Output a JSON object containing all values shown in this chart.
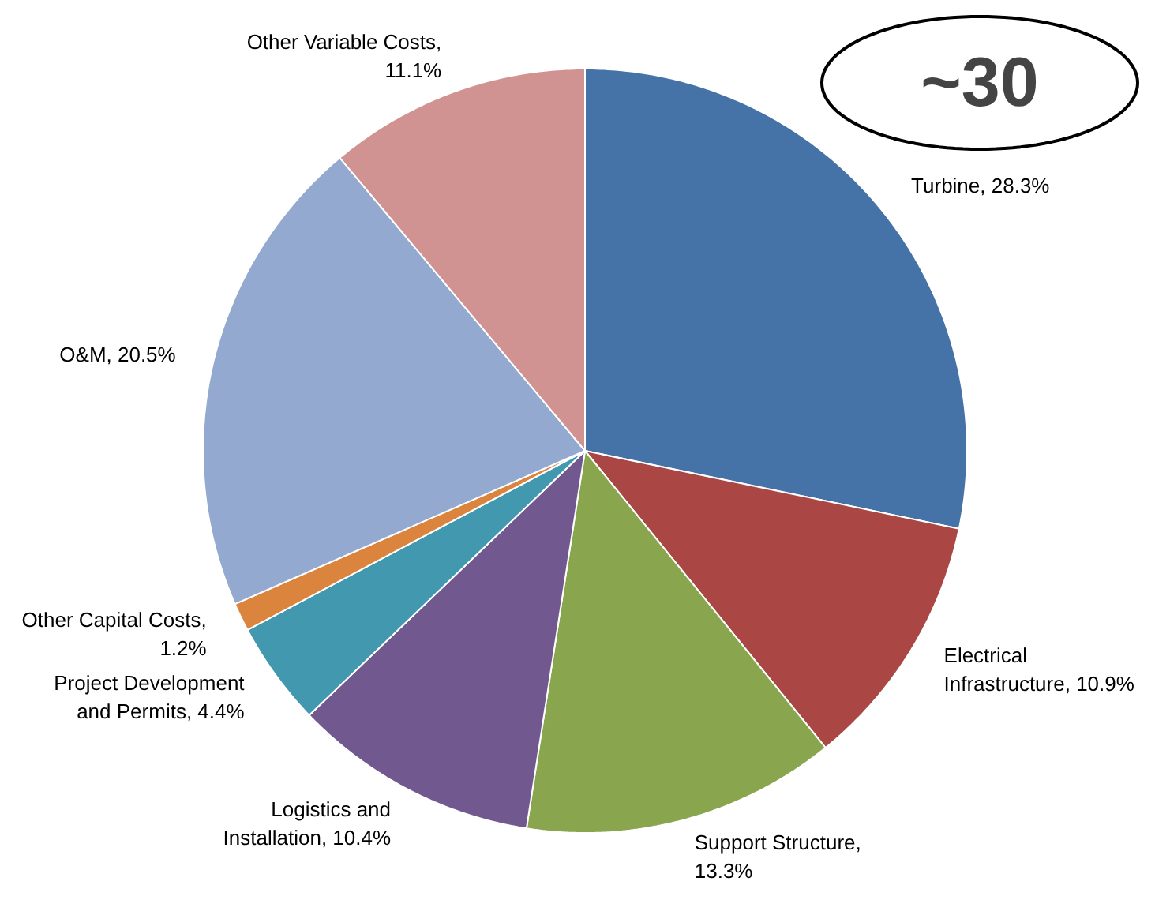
{
  "chart_data": {
    "type": "pie",
    "categories": [
      "Turbine",
      "Electrical Infrastructure",
      "Support Structure",
      "Logistics and Installation",
      "Project Development and Permits",
      "Other Capital Costs",
      "O&M",
      "Other Variable Costs"
    ],
    "values": [
      28.3,
      10.9,
      13.3,
      10.4,
      4.4,
      1.2,
      20.5,
      11.1
    ],
    "value_labels": [
      ", 28.3%",
      ", 10.9%",
      ", 13.3%",
      ", 10.4%",
      ", 4.4%",
      ", 1.2%",
      ", 20.5%",
      ", 11.1%"
    ],
    "colors": [
      "#4572a7",
      "#aa4643",
      "#89a54e",
      "#71588f",
      "#4198af",
      "#db843d",
      "#93a9cf",
      "#d09392"
    ],
    "annotations": [
      "~30"
    ]
  }
}
